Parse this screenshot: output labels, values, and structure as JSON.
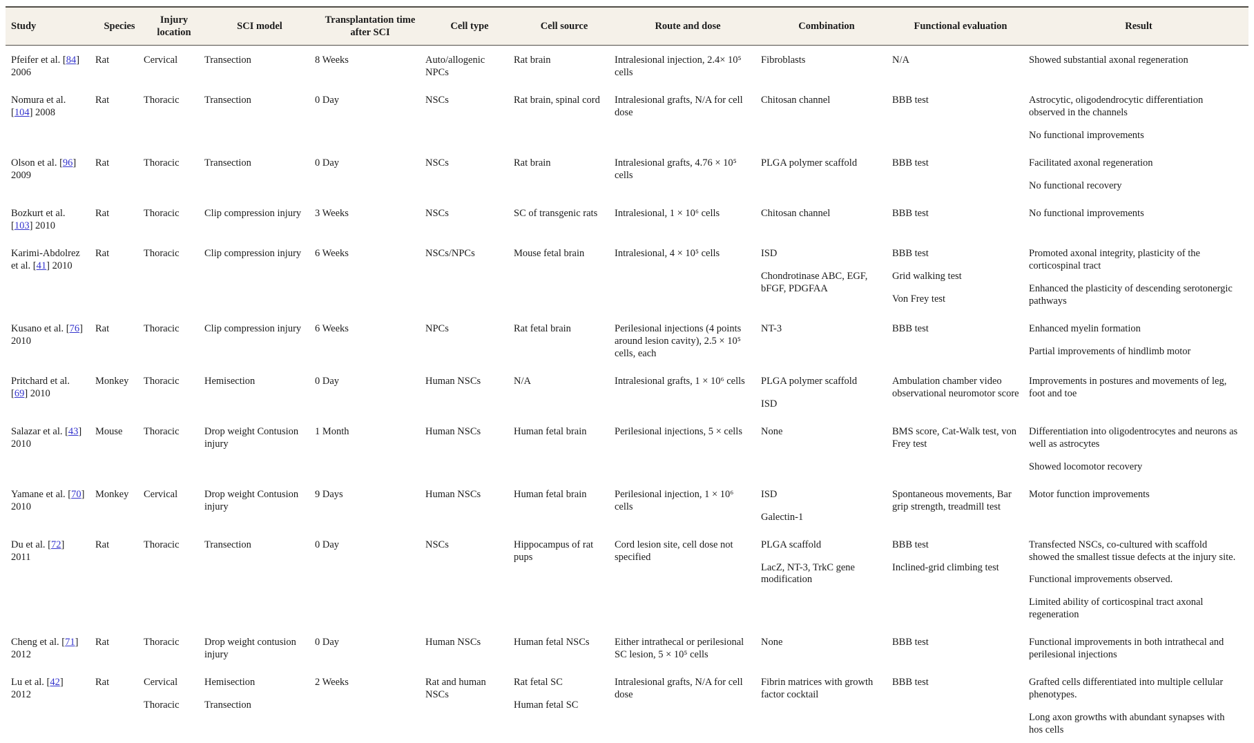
{
  "table": {
    "link_color": "#3333cc",
    "header_bg": "#f5f1e9",
    "columns": [
      {
        "key": "study",
        "label": "Study"
      },
      {
        "key": "species",
        "label": "Species"
      },
      {
        "key": "injury_location",
        "label": "Injury location"
      },
      {
        "key": "sci_model",
        "label": "SCI model"
      },
      {
        "key": "transplant_time",
        "label": "Transplantation time after SCI"
      },
      {
        "key": "cell_type",
        "label": "Cell type"
      },
      {
        "key": "cell_source",
        "label": "Cell source"
      },
      {
        "key": "route_dose",
        "label": "Route and dose"
      },
      {
        "key": "combination",
        "label": "Combination"
      },
      {
        "key": "functional_evaluation",
        "label": "Functional evaluation"
      },
      {
        "key": "result",
        "label": "Result"
      }
    ],
    "rows": [
      {
        "study": {
          "pre": "Pfeifer et al. [",
          "ref": "84",
          "post": "] 2006"
        },
        "species": [
          "Rat"
        ],
        "injury_location": [
          "Cervical"
        ],
        "sci_model": [
          "Transection"
        ],
        "transplant_time": [
          "8 Weeks"
        ],
        "cell_type": [
          "Auto/allogenic NPCs"
        ],
        "cell_source": [
          "Rat brain"
        ],
        "route_dose": [
          "Intralesional injection, 2.4× 10⁵ cells"
        ],
        "combination": [
          "Fibroblasts"
        ],
        "functional_evaluation": [
          "N/A"
        ],
        "result": [
          "Showed substantial axonal regeneration"
        ]
      },
      {
        "study": {
          "pre": "Nomura et al. [",
          "ref": "104",
          "post": "] 2008"
        },
        "species": [
          "Rat"
        ],
        "injury_location": [
          "Thoracic"
        ],
        "sci_model": [
          "Transection"
        ],
        "transplant_time": [
          "0 Day"
        ],
        "cell_type": [
          "NSCs"
        ],
        "cell_source": [
          "Rat brain, spinal cord"
        ],
        "route_dose": [
          "Intralesional grafts, N/A for cell dose"
        ],
        "combination": [
          "Chitosan channel"
        ],
        "functional_evaluation": [
          "BBB test"
        ],
        "result": [
          "Astrocytic, oligodendrocytic differentiation observed in the channels",
          "No functional improvements"
        ]
      },
      {
        "study": {
          "pre": "Olson et al. [",
          "ref": "96",
          "post": "] 2009"
        },
        "species": [
          "Rat"
        ],
        "injury_location": [
          "Thoracic"
        ],
        "sci_model": [
          "Transection"
        ],
        "transplant_time": [
          "0 Day"
        ],
        "cell_type": [
          "NSCs"
        ],
        "cell_source": [
          "Rat brain"
        ],
        "route_dose": [
          "Intralesional grafts, 4.76 × 10⁵ cells"
        ],
        "combination": [
          "PLGA polymer scaffold"
        ],
        "functional_evaluation": [
          "BBB test"
        ],
        "result": [
          "Facilitated axonal regeneration",
          "No functional recovery"
        ]
      },
      {
        "study": {
          "pre": "Bozkurt et al. [",
          "ref": "103",
          "post": "] 2010"
        },
        "species": [
          "Rat"
        ],
        "injury_location": [
          "Thoracic"
        ],
        "sci_model": [
          "Clip compression injury"
        ],
        "transplant_time": [
          "3 Weeks"
        ],
        "cell_type": [
          "NSCs"
        ],
        "cell_source": [
          "SC of transgenic rats"
        ],
        "route_dose": [
          "Intralesional, 1 × 10⁶ cells"
        ],
        "combination": [
          "Chitosan channel"
        ],
        "functional_evaluation": [
          "BBB test"
        ],
        "result": [
          "No functional improvements"
        ]
      },
      {
        "study": {
          "pre": "Karimi-Abdolrez et al. [",
          "ref": "41",
          "post": "] 2010"
        },
        "species": [
          "Rat"
        ],
        "injury_location": [
          "Thoracic"
        ],
        "sci_model": [
          "Clip compression injury"
        ],
        "transplant_time": [
          "6 Weeks"
        ],
        "cell_type": [
          "NSCs/NPCs"
        ],
        "cell_source": [
          "Mouse fetal brain"
        ],
        "route_dose": [
          "Intralesional, 4 × 10⁵ cells"
        ],
        "combination": [
          "ISD",
          "Chondrotinase ABC, EGF, bFGF, PDGFAA"
        ],
        "functional_evaluation": [
          "BBB test",
          "Grid walking test",
          "Von Frey test"
        ],
        "result": [
          "Promoted axonal integrity, plasticity of the corticospinal tract",
          "Enhanced the plasticity of descending serotonergic pathways"
        ]
      },
      {
        "study": {
          "pre": "Kusano et al. [",
          "ref": "76",
          "post": "] 2010"
        },
        "species": [
          "Rat"
        ],
        "injury_location": [
          "Thoracic"
        ],
        "sci_model": [
          "Clip compression injury"
        ],
        "transplant_time": [
          "6 Weeks"
        ],
        "cell_type": [
          "NPCs"
        ],
        "cell_source": [
          "Rat fetal brain"
        ],
        "route_dose": [
          "Perilesional injections (4 points around lesion cavity), 2.5 × 10⁵ cells, each"
        ],
        "combination": [
          "NT-3"
        ],
        "functional_evaluation": [
          "BBB test"
        ],
        "result": [
          "Enhanced myelin formation",
          "Partial improvements of hindlimb motor"
        ]
      },
      {
        "study": {
          "pre": "Pritchard et al. [",
          "ref": "69",
          "post": "] 2010"
        },
        "species": [
          "Monkey"
        ],
        "injury_location": [
          "Thoracic"
        ],
        "sci_model": [
          "Hemisection"
        ],
        "transplant_time": [
          "0 Day"
        ],
        "cell_type": [
          "Human NSCs"
        ],
        "cell_source": [
          "N/A"
        ],
        "route_dose": [
          "Intralesional grafts, 1 × 10⁶ cells"
        ],
        "combination": [
          "PLGA polymer scaffold",
          "ISD"
        ],
        "functional_evaluation": [
          "Ambulation chamber video observational neuromotor score"
        ],
        "result": [
          "Improvements in postures and movements of leg, foot and toe"
        ]
      },
      {
        "study": {
          "pre": "Salazar et al. [",
          "ref": "43",
          "post": "] 2010"
        },
        "species": [
          "Mouse"
        ],
        "injury_location": [
          "Thoracic"
        ],
        "sci_model": [
          "Drop weight Contusion injury"
        ],
        "transplant_time": [
          "1 Month"
        ],
        "cell_type": [
          "Human NSCs"
        ],
        "cell_source": [
          "Human fetal brain"
        ],
        "route_dose": [
          "Perilesional injections, 5 × cells"
        ],
        "combination": [
          "None"
        ],
        "functional_evaluation": [
          "BMS score, Cat-Walk test, von Frey test"
        ],
        "result": [
          "Differentiation into oligodentrocytes and neurons as well as astrocytes",
          "Showed locomotor recovery"
        ]
      },
      {
        "study": {
          "pre": "Yamane et al. [",
          "ref": "70",
          "post": "] 2010"
        },
        "species": [
          "Monkey"
        ],
        "injury_location": [
          "Cervical"
        ],
        "sci_model": [
          "Drop weight Contusion injury"
        ],
        "transplant_time": [
          "9 Days"
        ],
        "cell_type": [
          "Human NSCs"
        ],
        "cell_source": [
          "Human fetal brain"
        ],
        "route_dose": [
          "Perilesional injection, 1 × 10⁶ cells"
        ],
        "combination": [
          "ISD",
          "Galectin-1"
        ],
        "functional_evaluation": [
          "Spontaneous movements, Bar grip strength, treadmill test"
        ],
        "result": [
          "Motor function improvements"
        ]
      },
      {
        "study": {
          "pre": "Du et al. [",
          "ref": "72",
          "post": "] 2011"
        },
        "species": [
          "Rat"
        ],
        "injury_location": [
          "Thoracic"
        ],
        "sci_model": [
          "Transection"
        ],
        "transplant_time": [
          "0 Day"
        ],
        "cell_type": [
          "NSCs"
        ],
        "cell_source": [
          "Hippocampus of rat pups"
        ],
        "route_dose": [
          "Cord lesion site, cell dose not specified"
        ],
        "combination": [
          "PLGA scaffold",
          "LacZ, NT-3, TrkC gene modification"
        ],
        "functional_evaluation": [
          "BBB test",
          "Inclined-grid climbing test"
        ],
        "result": [
          "Transfected NSCs, co-cultured with scaffold showed the smallest tissue defects at the injury site.",
          "Functional improvements observed.",
          "Limited ability of corticospinal tract axonal regeneration"
        ]
      },
      {
        "study": {
          "pre": "Cheng et al. [",
          "ref": "71",
          "post": "] 2012"
        },
        "species": [
          "Rat"
        ],
        "injury_location": [
          "Thoracic"
        ],
        "sci_model": [
          "Drop weight contusion injury"
        ],
        "transplant_time": [
          "0 Day"
        ],
        "cell_type": [
          "Human NSCs"
        ],
        "cell_source": [
          "Human fetal NSCs"
        ],
        "route_dose": [
          "Either intrathecal or perilesional SC lesion, 5 × 10⁵ cells"
        ],
        "combination": [
          "None"
        ],
        "functional_evaluation": [
          "BBB test"
        ],
        "result": [
          "Functional improvements in both intrathecal and perilesional injections"
        ]
      },
      {
        "study": {
          "pre": "Lu et al. [",
          "ref": "42",
          "post": "] 2012"
        },
        "species": [
          "Rat"
        ],
        "injury_location": [
          "Cervical",
          "Thoracic"
        ],
        "sci_model": [
          "Hemisection",
          "Transection"
        ],
        "transplant_time": [
          "2 Weeks"
        ],
        "cell_type": [
          "Rat and human NSCs"
        ],
        "cell_source": [
          "Rat fetal SC",
          "Human fetal SC"
        ],
        "route_dose": [
          "Intralesional grafts, N/A for cell dose"
        ],
        "combination": [
          "Fibrin matrices with growth factor cocktail"
        ],
        "functional_evaluation": [
          "BBB test"
        ],
        "result": [
          "Grafted cells differentiated into multiple cellular phenotypes.",
          "Long axon growths with abundant synapses with hos cells"
        ]
      }
    ]
  }
}
